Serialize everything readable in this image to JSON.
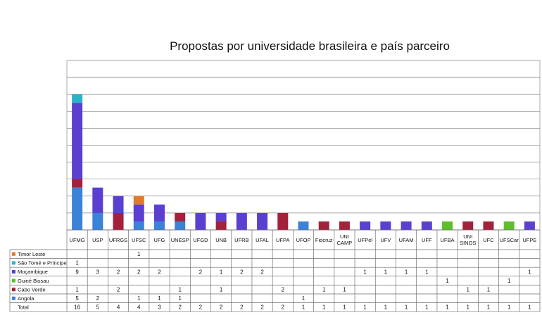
{
  "chart_data": {
    "type": "bar",
    "stacked": true,
    "title": "Propostas por universidade brasileira e país parceiro",
    "categories": [
      "UFMG",
      "USP",
      "UFRGS",
      "UFSC",
      "UFG",
      "UNESP",
      "UFGD",
      "UNB",
      "UFRB",
      "UFAL",
      "UFPA",
      "UFOP",
      "Fiocruz",
      "UNI CAMP",
      "UFPel",
      "UFV",
      "UFAM",
      "UFF",
      "UFBA",
      "UNI SINOS",
      "UFC",
      "UFSCar",
      "UFPE"
    ],
    "ylim": [
      0,
      20
    ],
    "grid": true,
    "legend": "table",
    "series": [
      {
        "name": "Angola",
        "color": "#3b82d9",
        "values": [
          5,
          2,
          null,
          1,
          1,
          1,
          null,
          null,
          null,
          null,
          null,
          1,
          null,
          null,
          null,
          null,
          null,
          null,
          null,
          null,
          null,
          null,
          null
        ]
      },
      {
        "name": "Cabo Verde",
        "color": "#a3213a",
        "values": [
          1,
          null,
          2,
          null,
          null,
          1,
          null,
          1,
          null,
          null,
          2,
          null,
          1,
          1,
          null,
          null,
          null,
          null,
          null,
          1,
          1,
          null,
          null
        ]
      },
      {
        "name": "Guiné Bissau",
        "color": "#5fbf2a",
        "values": [
          null,
          null,
          null,
          null,
          null,
          null,
          null,
          null,
          null,
          null,
          null,
          null,
          null,
          null,
          null,
          null,
          null,
          null,
          1,
          null,
          null,
          1,
          null
        ]
      },
      {
        "name": "Moçambique",
        "color": "#5b3fd1",
        "values": [
          9,
          3,
          2,
          2,
          2,
          null,
          2,
          1,
          2,
          2,
          null,
          null,
          null,
          null,
          1,
          1,
          1,
          1,
          null,
          null,
          null,
          null,
          1
        ]
      },
      {
        "name": "São Tomé e Príncipe",
        "color": "#2bb3c8",
        "values": [
          1,
          null,
          null,
          null,
          null,
          null,
          null,
          null,
          null,
          null,
          null,
          null,
          null,
          null,
          null,
          null,
          null,
          null,
          null,
          null,
          null,
          null,
          null
        ]
      },
      {
        "name": "Timor Leste",
        "color": "#e07a2e",
        "values": [
          null,
          null,
          null,
          1,
          null,
          null,
          null,
          null,
          null,
          null,
          null,
          null,
          null,
          null,
          null,
          null,
          null,
          null,
          null,
          null,
          null,
          null,
          null
        ]
      }
    ],
    "total": {
      "name": "Total",
      "values": [
        16,
        5,
        4,
        4,
        3,
        2,
        2,
        2,
        2,
        2,
        2,
        1,
        1,
        1,
        1,
        1,
        1,
        1,
        1,
        1,
        1,
        1,
        1
      ]
    }
  }
}
